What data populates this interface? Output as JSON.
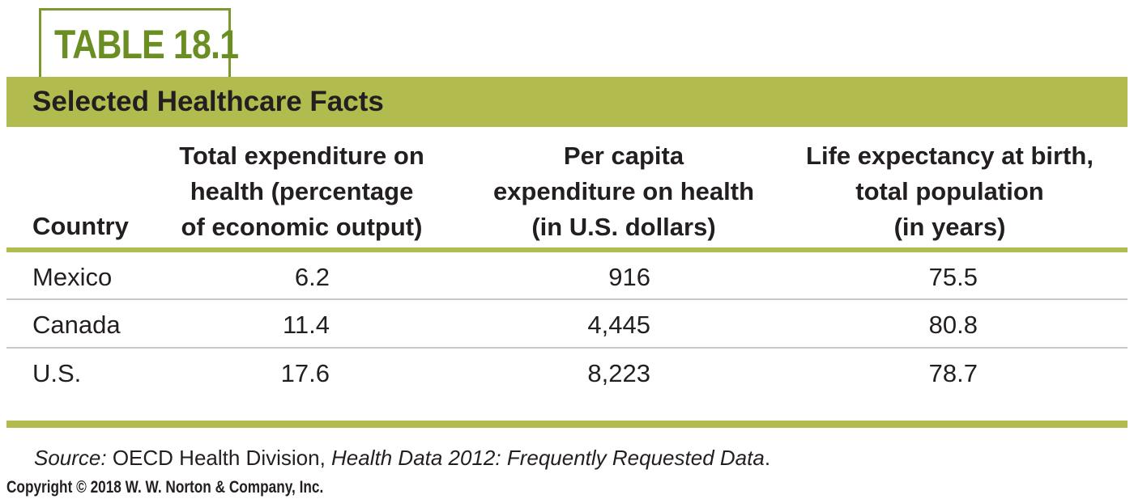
{
  "table_label": "TABLE 18.1",
  "title": "Selected Healthcare Facts",
  "columns": {
    "country": [
      "Country"
    ],
    "c1": [
      "Total expenditure on",
      "health (percentage",
      "of economic output)"
    ],
    "c2": [
      "Per capita",
      "expenditure on health",
      "(in U.S. dollars)"
    ],
    "c3": [
      "Life expectancy at birth,",
      "total population",
      "(in years)"
    ]
  },
  "rows": [
    {
      "country": "Mexico",
      "c1": "6.2",
      "c2": "916",
      "c3": "75.5"
    },
    {
      "country": "Canada",
      "c1": "11.4",
      "c2": "4,445",
      "c3": "80.8"
    },
    {
      "country": "U.S.",
      "c1": "17.6",
      "c2": "8,223",
      "c3": "78.7"
    }
  ],
  "source": {
    "label": "Source:",
    "org": " OECD Health Division, ",
    "publication": "Health Data 2012: Frequently Requested Data",
    "end": "."
  },
  "copyright": "Copyright © 2018 W. W. Norton & Company, Inc.",
  "colors": {
    "accent_green": "#b2bb4d",
    "label_green": "#6b8e23",
    "label_border": "#7a9a2e",
    "row_rule": "#c8c8c8",
    "text": "#231f20"
  }
}
